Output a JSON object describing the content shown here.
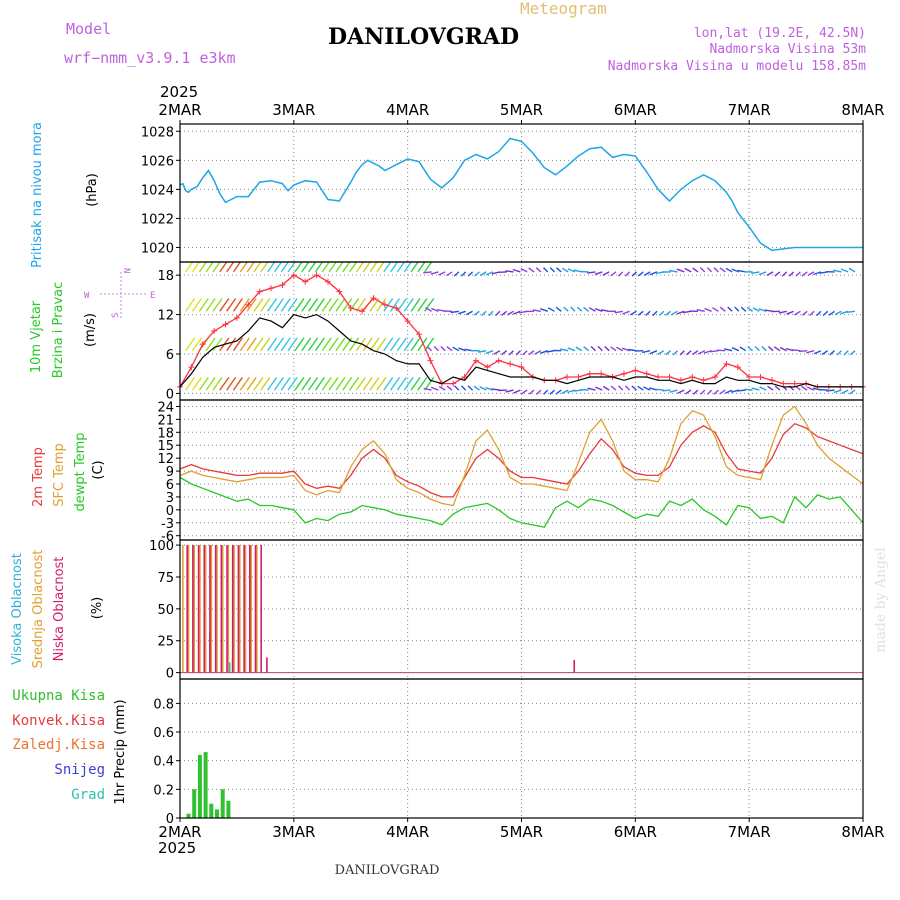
{
  "header": {
    "model_label": "Model",
    "model_name": "wrf−nmm_v3.9.1  e3km",
    "app_title": "Meteogram",
    "location": "DANILOVGRAD",
    "coords": "lon,lat (19.2E, 42.5N)",
    "altitude": "Nadmorska Visina 53m",
    "model_altitude": "Nadmorska Visina u modelu 158.85m",
    "year": "2025"
  },
  "footer": {
    "location": "DANILOVGRAD",
    "year": "2025",
    "credit": "made by Angel"
  },
  "colors": {
    "pressure": "#1fa5e8",
    "speed": "#000000",
    "gust": "#ff3040",
    "t2m": "#e83a3a",
    "sfc": "#e0a030",
    "dew": "#28c828",
    "cloud_high": "#30b0d8",
    "cloud_mid": "#e0a030",
    "cloud_low": "#d0206a",
    "precip": "#30c030",
    "label_magenta": "#c060e0",
    "label_gold": "#e0c070"
  },
  "chart_data": [
    {
      "type": "line",
      "name": "pressure",
      "x_labels": [
        "2MAR",
        "3MAR",
        "4MAR",
        "5MAR",
        "6MAR",
        "7MAR",
        "8MAR"
      ],
      "x": [
        0,
        0.05,
        0.1,
        0.15,
        0.2,
        0.3,
        0.4,
        0.5,
        0.6,
        0.7,
        0.8,
        0.9,
        1.0,
        1.2,
        1.4,
        1.6,
        1.8,
        1.9,
        2.0,
        2.2,
        2.4,
        2.6,
        2.8,
        3.0,
        3.1,
        3.2,
        3.3,
        3.5,
        3.6,
        3.8,
        4.0,
        4.2,
        4.4,
        4.6,
        4.8,
        5.0,
        5.2,
        5.4,
        5.6,
        5.8,
        6.0,
        6.2,
        6.4,
        6.6,
        6.8,
        7.0,
        7.2,
        7.4,
        7.6,
        7.8,
        8.0,
        8.2,
        8.4,
        8.6,
        8.8,
        9.0,
        9.2,
        9.4,
        9.6,
        9.7,
        9.8,
        10.0,
        10.2,
        10.4,
        10.6,
        10.8,
        11.0,
        11.2,
        11.4,
        11.6,
        11.8,
        12.0
      ],
      "values": [
        1024.3,
        1024.4,
        1023.9,
        1023.8,
        1024.0,
        1024.2,
        1024.8,
        1025.3,
        1024.6,
        1023.7,
        1023.1,
        1023.3,
        1023.5,
        1023.5,
        1024.5,
        1024.6,
        1024.4,
        1023.9,
        1024.3,
        1024.6,
        1024.5,
        1023.3,
        1023.2,
        1024.5,
        1025.2,
        1025.7,
        1026.0,
        1025.6,
        1025.3,
        1025.7,
        1026.1,
        1025.9,
        1024.7,
        1024.1,
        1024.8,
        1026.0,
        1026.4,
        1026.1,
        1026.6,
        1027.5,
        1027.3,
        1026.5,
        1025.5,
        1025.0,
        1025.6,
        1026.3,
        1026.8,
        1026.9,
        1026.2,
        1026.4,
        1026.3,
        1025.2,
        1024.0,
        1023.2,
        1024.0,
        1024.6,
        1025.0,
        1024.6,
        1023.8,
        1023.2,
        1022.4,
        1021.4,
        1020.3,
        1019.8,
        1019.9,
        1020.0,
        1020.0,
        1020.0,
        1020.0,
        1020.0,
        1020.0,
        1020.0
      ],
      "ylim": [
        1019,
        1028.5
      ],
      "yticks": [
        1020,
        1022,
        1024,
        1026,
        1028
      ],
      "ylabel": "(hPa)",
      "series_label": "Pritisak na nivou mora"
    },
    {
      "type": "line",
      "name": "wind",
      "x": [
        0,
        0.2,
        0.4,
        0.6,
        0.8,
        1.0,
        1.2,
        1.4,
        1.6,
        1.8,
        2.0,
        2.2,
        2.4,
        2.6,
        2.8,
        3.0,
        3.2,
        3.4,
        3.6,
        3.8,
        4.0,
        4.2,
        4.4,
        4.6,
        4.8,
        5.0,
        5.2,
        5.4,
        5.6,
        5.8,
        6.0,
        6.2,
        6.4,
        6.6,
        6.8,
        7.0,
        7.2,
        7.4,
        7.6,
        7.8,
        8.0,
        8.2,
        8.4,
        8.6,
        8.8,
        9.0,
        9.2,
        9.4,
        9.6,
        9.8,
        10.0,
        10.2,
        10.4,
        10.6,
        10.8,
        11.0,
        11.2,
        11.4,
        11.6,
        11.8,
        12.0
      ],
      "speed": [
        1.0,
        3.0,
        5.5,
        7.0,
        7.5,
        8.0,
        9.5,
        11.5,
        11.0,
        10.0,
        12.0,
        11.5,
        12.0,
        11.0,
        9.5,
        8.0,
        7.5,
        6.5,
        6.0,
        5.0,
        4.5,
        4.5,
        2.0,
        1.5,
        2.5,
        2.0,
        4.0,
        3.5,
        3.0,
        2.5,
        2.5,
        2.5,
        2.0,
        2.0,
        1.5,
        2.0,
        2.5,
        2.5,
        2.5,
        2.0,
        2.5,
        2.5,
        2.0,
        2.0,
        1.5,
        2.0,
        1.5,
        1.5,
        2.5,
        2.0,
        2.0,
        1.5,
        1.5,
        1.0,
        1.0,
        1.5,
        1.0,
        1.0,
        1.0,
        1.0,
        1.0
      ],
      "gust": [
        1.0,
        4.0,
        7.5,
        9.5,
        10.5,
        11.5,
        13.5,
        15.5,
        16.0,
        16.5,
        18.0,
        17.0,
        18.0,
        17.0,
        15.5,
        13.0,
        12.5,
        14.5,
        13.5,
        13.0,
        11.0,
        9.0,
        5.0,
        1.5,
        1.5,
        2.5,
        5.0,
        4.0,
        5.0,
        4.5,
        4.0,
        2.5,
        2.0,
        2.0,
        2.5,
        2.5,
        3.0,
        3.0,
        2.5,
        3.0,
        3.5,
        3.0,
        2.5,
        2.5,
        2.0,
        2.5,
        2.0,
        2.5,
        4.5,
        4.0,
        2.5,
        2.5,
        2.0,
        1.5,
        1.5,
        1.5,
        1.0,
        1.0,
        1.0,
        1.0,
        1.0
      ],
      "ylim": [
        -1,
        20
      ],
      "yticks": [
        0,
        6,
        12,
        18
      ],
      "ylabel": "(m/s)",
      "series_label": [
        "10m Vjetar",
        "Brzina i Pravac"
      ],
      "direction_legend": [
        "N",
        "W",
        "E",
        "S"
      ]
    },
    {
      "type": "line",
      "name": "temperature",
      "x": [
        0,
        0.2,
        0.4,
        0.6,
        0.8,
        1.0,
        1.2,
        1.4,
        1.6,
        1.8,
        2.0,
        2.2,
        2.4,
        2.6,
        2.8,
        3.0,
        3.2,
        3.4,
        3.6,
        3.8,
        4.0,
        4.2,
        4.4,
        4.6,
        4.8,
        5.0,
        5.2,
        5.4,
        5.6,
        5.8,
        6.0,
        6.2,
        6.4,
        6.6,
        6.8,
        7.0,
        7.2,
        7.4,
        7.6,
        7.8,
        8.0,
        8.2,
        8.4,
        8.6,
        8.8,
        9.0,
        9.2,
        9.4,
        9.6,
        9.8,
        10.0,
        10.2,
        10.4,
        10.6,
        10.8,
        11.0,
        11.2,
        11.4,
        11.6,
        11.8,
        12.0
      ],
      "series": [
        {
          "name": "2m Temp",
          "values": [
            9.5,
            10.5,
            9.5,
            9.0,
            8.5,
            8.0,
            8.0,
            8.5,
            8.5,
            8.5,
            9.0,
            6.0,
            5.0,
            5.5,
            5.0,
            8.0,
            12.0,
            14.0,
            12.0,
            8.0,
            6.5,
            5.5,
            4.0,
            3.0,
            3.0,
            7.5,
            12.0,
            14.0,
            12.0,
            9.0,
            7.5,
            7.5,
            7.0,
            6.5,
            6.0,
            9.0,
            13.0,
            16.5,
            14.0,
            10.0,
            8.5,
            8.0,
            8.0,
            10.0,
            15.0,
            18.0,
            19.5,
            18.0,
            13.0,
            9.5,
            9.0,
            8.5,
            12.0,
            17.5,
            20.0,
            19.0,
            17.0,
            16.0,
            15.0,
            14.0,
            13.0
          ]
        },
        {
          "name": "SFC Temp",
          "values": [
            8.0,
            9.0,
            8.0,
            7.5,
            7.0,
            6.5,
            7.0,
            7.5,
            7.5,
            7.5,
            8.0,
            4.5,
            3.5,
            4.5,
            4.0,
            10.0,
            14.0,
            16.0,
            13.0,
            7.0,
            5.0,
            4.0,
            2.5,
            1.5,
            1.0,
            8.0,
            16.0,
            18.5,
            14.0,
            7.5,
            6.0,
            6.0,
            5.5,
            5.0,
            4.5,
            11.0,
            18.0,
            21.0,
            16.0,
            9.0,
            7.0,
            7.0,
            6.5,
            12.0,
            20.0,
            23.0,
            22.0,
            17.0,
            10.0,
            8.0,
            7.5,
            7.0,
            15.0,
            22.0,
            24.0,
            20.0,
            15.0,
            12.0,
            10.0,
            8.0,
            6.0
          ]
        },
        {
          "name": "dewpt Temp",
          "values": [
            7.5,
            6.0,
            5.0,
            4.0,
            3.0,
            2.0,
            2.5,
            1.0,
            1.0,
            0.5,
            0.0,
            -3.0,
            -2.0,
            -2.5,
            -1.0,
            -0.5,
            1.0,
            0.5,
            0.0,
            -1.0,
            -1.5,
            -2.0,
            -2.5,
            -3.5,
            -1.0,
            0.5,
            1.0,
            1.5,
            0.0,
            -2.0,
            -3.0,
            -3.5,
            -4.0,
            0.5,
            2.0,
            0.5,
            2.5,
            2.0,
            1.0,
            -0.5,
            -2.0,
            -1.0,
            -1.5,
            2.0,
            1.0,
            2.5,
            0.0,
            -1.5,
            -3.5,
            1.0,
            0.5,
            -2.0,
            -1.5,
            -3.0,
            3.0,
            0.5,
            3.5,
            2.5,
            3.0,
            0.0,
            -3.0
          ]
        }
      ],
      "ylim": [
        -7,
        25.5
      ],
      "yticks": [
        -6,
        -3,
        0,
        3,
        6,
        9,
        12,
        15,
        18,
        21,
        24
      ],
      "ylabel": "(C)"
    },
    {
      "type": "bar",
      "name": "cloudiness",
      "x": [
        0.05,
        0.1,
        0.15,
        0.2,
        0.25,
        0.3,
        0.35,
        0.4,
        0.45,
        0.5,
        0.55,
        0.6,
        0.65,
        0.7,
        0.75,
        0.8,
        0.85,
        0.9,
        0.95,
        1.0,
        1.05,
        1.1,
        1.15,
        1.2,
        1.25,
        1.3,
        1.35,
        1.4,
        1.45,
        1.5,
        6.9
      ],
      "series": [
        {
          "name": "Visoka Oblacnost",
          "values": [
            0,
            0,
            0,
            0,
            0,
            0,
            0,
            0,
            0,
            0,
            32,
            0,
            0,
            0,
            0,
            0,
            0,
            8,
            12,
            0,
            0,
            0,
            0,
            0,
            0,
            0,
            0,
            0,
            0,
            0,
            0
          ]
        },
        {
          "name": "Srednja Oblacnost",
          "values": [
            100,
            0,
            100,
            0,
            100,
            0,
            100,
            0,
            100,
            0,
            100,
            0,
            100,
            0,
            100,
            0,
            100,
            0,
            100,
            0,
            100,
            0,
            100,
            0,
            100,
            0,
            100,
            0,
            0,
            0,
            0
          ]
        },
        {
          "name": "Niska Oblacnost",
          "values": [
            0,
            100,
            0,
            100,
            0,
            100,
            0,
            100,
            0,
            100,
            0,
            100,
            0,
            100,
            0,
            100,
            0,
            100,
            0,
            100,
            0,
            100,
            0,
            100,
            0,
            100,
            0,
            100,
            0,
            12,
            10
          ]
        }
      ],
      "ylim": [
        -5,
        104
      ],
      "yticks": [
        0,
        25,
        50,
        75,
        100
      ],
      "ylabel": "(%)"
    },
    {
      "type": "bar",
      "name": "precipitation",
      "x": [
        0.15,
        0.25,
        0.35,
        0.45,
        0.55,
        0.65,
        0.75,
        0.85
      ],
      "series": [
        {
          "name": "Ukupna Kisa",
          "values": [
            0.03,
            0.2,
            0.44,
            0.46,
            0.1,
            0.06,
            0.2,
            0.12
          ]
        },
        {
          "name": "Konvek.Kisa",
          "values": [
            0,
            0,
            0,
            0,
            0,
            0,
            0,
            0
          ]
        },
        {
          "name": "Zaledj.Kisa",
          "values": [
            0,
            0,
            0,
            0,
            0,
            0,
            0,
            0
          ]
        },
        {
          "name": "Snijeg",
          "values": [
            0,
            0,
            0,
            0,
            0,
            0,
            0,
            0
          ]
        },
        {
          "name": "Grad",
          "values": [
            0,
            0,
            0,
            0,
            0,
            0,
            0,
            0
          ]
        }
      ],
      "ylim": [
        0,
        0.97
      ],
      "yticks": [
        0.0,
        0.2,
        0.4,
        0.6,
        0.8
      ],
      "ylabel": "1hr Precip (mm)"
    }
  ]
}
